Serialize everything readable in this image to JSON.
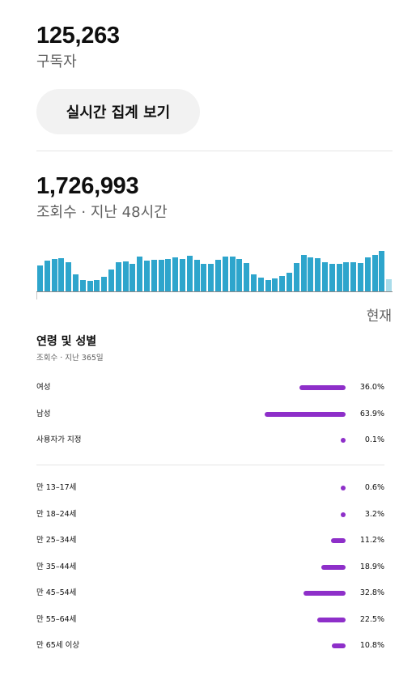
{
  "subscribers": {
    "value": "125,263",
    "label": "구독자"
  },
  "realtime_button": {
    "label": "실시간 집계 보기"
  },
  "views": {
    "value": "1,726,993",
    "label": "조회수 · 지난 48시간"
  },
  "chart_data": {
    "type": "bar",
    "title": "",
    "xlabel": "",
    "ylabel": "",
    "x_end_label": "현재",
    "values": [
      32,
      38,
      40,
      41,
      36,
      21,
      14,
      13,
      14,
      18,
      27,
      36,
      37,
      34,
      43,
      38,
      39,
      39,
      40,
      42,
      40,
      44,
      39,
      34,
      34,
      39,
      43,
      43,
      40,
      35,
      21,
      17,
      14,
      16,
      19,
      23,
      35,
      45,
      42,
      41,
      36,
      34,
      34,
      36,
      36,
      35,
      42,
      45,
      50,
      15
    ],
    "ylim": [
      0,
      60
    ]
  },
  "demographics": {
    "title": "연령 및 성별",
    "subtitle": "조회수 · 지난 365일",
    "gender": [
      {
        "label": "여성",
        "percent": 36.0,
        "display": "36.0%"
      },
      {
        "label": "남성",
        "percent": 63.9,
        "display": "63.9%"
      },
      {
        "label": "사용자가 지정",
        "percent": 0.1,
        "display": "0.1%"
      }
    ],
    "age": [
      {
        "label": "만 13–17세",
        "percent": 0.6,
        "display": "0.6%"
      },
      {
        "label": "만 18–24세",
        "percent": 3.2,
        "display": "3.2%"
      },
      {
        "label": "만 25–34세",
        "percent": 11.2,
        "display": "11.2%"
      },
      {
        "label": "만 35–44세",
        "percent": 18.9,
        "display": "18.9%"
      },
      {
        "label": "만 45–54세",
        "percent": 32.8,
        "display": "32.8%"
      },
      {
        "label": "만 55–64세",
        "percent": 22.5,
        "display": "22.5%"
      },
      {
        "label": "만 65세 이상",
        "percent": 10.8,
        "display": "10.8%"
      }
    ],
    "bar_color": "#8e2fc9"
  },
  "colors": {
    "bar": "#2ea5cc",
    "bar_current": "#a9dcea",
    "accent": "#8e2fc9"
  }
}
